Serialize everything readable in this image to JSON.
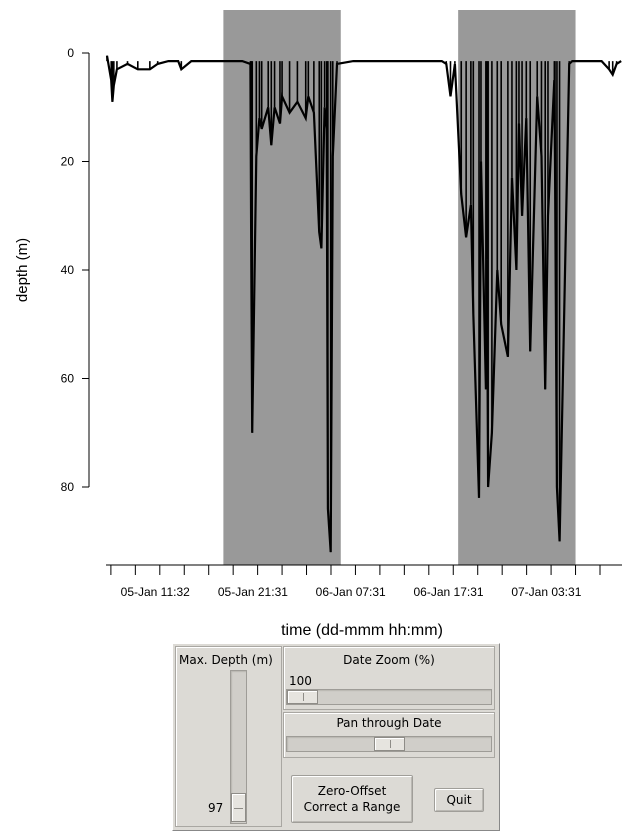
{
  "chart_data": {
    "type": "line",
    "title": "",
    "xlabel": "time (dd-mmm hh:mm)",
    "ylabel": "depth (m)",
    "y_inverted": true,
    "ylim": [
      0,
      95
    ],
    "yticks": [
      0,
      20,
      40,
      60,
      80
    ],
    "xlim": [
      "05-Jan 06:30",
      "07-Jan 11:15"
    ],
    "xtick_labels": [
      "05-Jan 11:32",
      "05-Jan 21:31",
      "06-Jan 07:31",
      "06-Jan 17:31",
      "07-Jan 03:31"
    ],
    "shaded_periods": [
      {
        "start": "05-Jan 18:30",
        "end": "06-Jan 06:30"
      },
      {
        "start": "06-Jan 18:30",
        "end": "07-Jan 06:30"
      }
    ],
    "series": [
      {
        "x": [
          "05-Jan 06:36",
          "05-Jan 07:02",
          "05-Jan 07:09",
          "05-Jan 07:18",
          "05-Jan 07:37",
          "05-Jan 08:42",
          "05-Jan 09:45",
          "05-Jan 10:59",
          "05-Jan 11:47",
          "05-Jan 12:53",
          "05-Jan 13:53",
          "05-Jan 14:12",
          "05-Jan 15:13",
          "05-Jan 16:31",
          "05-Jan 17:40",
          "05-Jan 19:00",
          "05-Jan 20:26",
          "05-Jan 21:16",
          "05-Jan 21:20",
          "05-Jan 21:27",
          "05-Jan 21:52",
          "05-Jan 22:11",
          "05-Jan 22:25",
          "05-Jan 23:05",
          "05-Jan 23:24",
          "05-Jan 23:44",
          "06-Jan 00:17",
          "06-Jan 00:30",
          "06-Jan 01:16",
          "06-Jan 02:04",
          "06-Jan 02:55",
          "06-Jan 03:11",
          "06-Jan 03:45",
          "06-Jan 04:18",
          "06-Jan 04:31",
          "06-Jan 04:51",
          "06-Jan 05:04",
          "06-Jan 05:11",
          "06-Jan 05:28",
          "06-Jan 05:41",
          "06-Jan 06:07",
          "06-Jan 07:47",
          "06-Jan 08:42",
          "06-Jan 09:26",
          "06-Jan 16:50",
          "06-Jan 17:17",
          "06-Jan 17:43",
          "06-Jan 18:10",
          "06-Jan 18:49",
          "06-Jan 19:19",
          "06-Jan 19:48",
          "06-Jan 20:03",
          "06-Jan 20:38",
          "06-Jan 20:50",
          "06-Jan 21:20",
          "06-Jan 21:27",
          "06-Jan 21:34",
          "06-Jan 21:57",
          "06-Jan 22:30",
          "06-Jan 22:54",
          "06-Jan 23:35",
          "07-Jan 00:00",
          "07-Jan 00:27",
          "07-Jan 00:43",
          "07-Jan 01:02",
          "07-Jan 01:28",
          "07-Jan 01:52",
          "07-Jan 02:35",
          "07-Jan 03:01",
          "07-Jan 03:24",
          "07-Jan 03:41",
          "07-Jan 04:20",
          "07-Jan 04:24",
          "07-Jan 04:36",
          "07-Jan 04:52",
          "07-Jan 05:51",
          "07-Jan 06:10",
          "07-Jan 09:10",
          "07-Jan 09:56",
          "07-Jan 10:18",
          "07-Jan 10:42",
          "07-Jan 11:10"
        ],
        "values": [
          0.5,
          5,
          9,
          6,
          3,
          2,
          3,
          3,
          2,
          1.5,
          1.5,
          3,
          1.5,
          1.5,
          1.5,
          1.5,
          1.5,
          2,
          32,
          70,
          19,
          12,
          14,
          10,
          17,
          10,
          13,
          8,
          11,
          9,
          12,
          8,
          11,
          33,
          36,
          10,
          14,
          84,
          92,
          19,
          2,
          1.5,
          1.5,
          1.5,
          1.5,
          2,
          8,
          2,
          26,
          34,
          28,
          48,
          82,
          20,
          62,
          38,
          80,
          70,
          40,
          50,
          56,
          23,
          40,
          13,
          30,
          12,
          55,
          8,
          19,
          62,
          30,
          5,
          20,
          80,
          90,
          2,
          1.5,
          1.5,
          3,
          4,
          2,
          1.5
        ]
      }
    ]
  },
  "controls": {
    "max_depth": {
      "label": "Max. Depth (m)",
      "value": "97"
    },
    "date_zoom": {
      "label": "Date Zoom (%)",
      "value": "100"
    },
    "pan": {
      "label": "Pan through Date"
    },
    "buttons": {
      "zero_offset": "Zero-Offset\nCorrect a Range",
      "quit": "Quit"
    }
  }
}
